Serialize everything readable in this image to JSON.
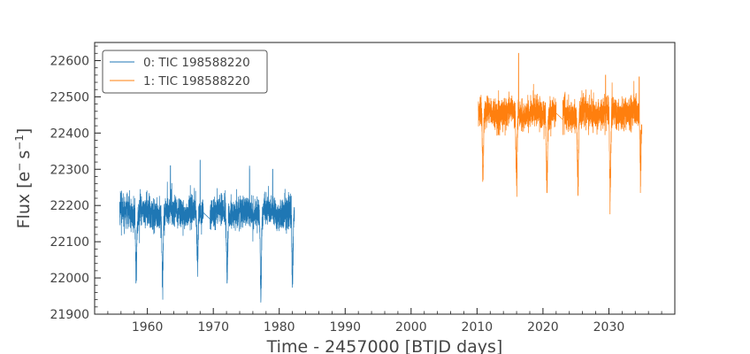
{
  "chart_data": {
    "type": "line",
    "xlabel": "Time - 2457000 [BTJD days]",
    "ylabel": "Flux [e⁻s⁻¹]",
    "ylabel_parts": {
      "main": "Flux [e",
      "sup1": "−",
      "mid": "s",
      "sup2": "−1",
      "end": "]"
    },
    "xlim": [
      1952,
      2040
    ],
    "ylim": [
      21900,
      22650
    ],
    "xticks": [
      1960,
      1970,
      1980,
      1990,
      2000,
      2010,
      2020,
      2030
    ],
    "yticks": [
      21900,
      22000,
      22100,
      22200,
      22300,
      22400,
      22500,
      22600
    ],
    "grid": false,
    "legend_position": "top-left",
    "series": [
      {
        "name": "0: TIC 198588220",
        "color": "#1f77b4",
        "x_range": [
          1955.8,
          1982.3
        ],
        "baseline": 22180,
        "noise": 35,
        "gap": [
          1968.5,
          1969.5
        ],
        "dips": [
          {
            "x": 1958.3,
            "min": 21995
          },
          {
            "x": 1962.3,
            "min": 21970
          },
          {
            "x": 1967.6,
            "min": 22010
          },
          {
            "x": 1972.1,
            "min": 21980
          },
          {
            "x": 1977.2,
            "min": 21930
          },
          {
            "x": 1982.0,
            "min": 21960
          }
        ],
        "peaks": [
          {
            "x": 1963.5,
            "max": 22310
          },
          {
            "x": 1968.0,
            "max": 22325
          },
          {
            "x": 1975.5,
            "max": 22300
          },
          {
            "x": 1979.0,
            "max": 22300
          }
        ]
      },
      {
        "name": "1: TIC 198588220",
        "color": "#ff7f0e",
        "x_range": [
          2010.2,
          2035.0
        ],
        "baseline": 22455,
        "noise": 35,
        "gap": [
          2022.0,
          2023.0
        ],
        "dips": [
          {
            "x": 2010.9,
            "min": 22250
          },
          {
            "x": 2016.0,
            "min": 22240
          },
          {
            "x": 2020.6,
            "min": 22230
          },
          {
            "x": 2025.3,
            "min": 22235
          },
          {
            "x": 2030.2,
            "min": 22200
          },
          {
            "x": 2034.8,
            "min": 22275
          }
        ],
        "peaks": [
          {
            "x": 2016.3,
            "max": 22620
          },
          {
            "x": 2029.5,
            "max": 22560
          },
          {
            "x": 2034.6,
            "max": 22555
          }
        ]
      }
    ]
  }
}
